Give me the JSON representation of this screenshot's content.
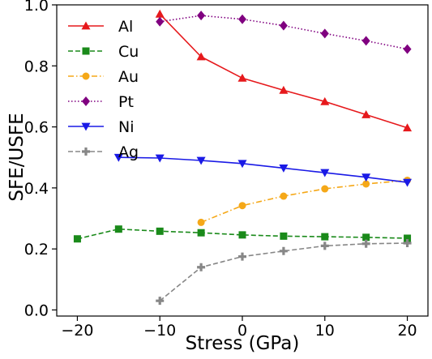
{
  "chart_data": {
    "type": "line",
    "title": "",
    "xlabel": "Stress (GPa)",
    "ylabel": "SFE/USFE",
    "xlim": [
      -22.5,
      22.5
    ],
    "ylim": [
      -0.02,
      1.0
    ],
    "xticks": [
      -20,
      -10,
      0,
      10,
      20
    ],
    "xtick_labels": [
      "−20",
      "−10",
      "0",
      "10",
      "20"
    ],
    "yticks": [
      0.0,
      0.2,
      0.4,
      0.6,
      0.8,
      1.0
    ],
    "ytick_labels": [
      "0.0",
      "0.2",
      "0.4",
      "0.6",
      "0.8",
      "1.0"
    ],
    "grid": false,
    "legend_position": "top-left",
    "series": [
      {
        "name": "Al",
        "color": "#e6191c",
        "dash": "solid",
        "marker": "triangle-up",
        "x": [
          -10,
          -5,
          0,
          5,
          10,
          15,
          20
        ],
        "y": [
          0.97,
          0.83,
          0.76,
          0.72,
          0.683,
          0.64,
          0.597
        ]
      },
      {
        "name": "Cu",
        "color": "#1a8a1a",
        "dash": "dashed",
        "marker": "square",
        "x": [
          -20,
          -15,
          -10,
          -5,
          0,
          5,
          10,
          15,
          20
        ],
        "y": [
          0.233,
          0.265,
          0.258,
          0.253,
          0.246,
          0.242,
          0.24,
          0.238,
          0.235
        ]
      },
      {
        "name": "Au",
        "color": "#f5a818",
        "dash": "dashdot",
        "marker": "circle",
        "x": [
          -5,
          0,
          5,
          10,
          15,
          20
        ],
        "y": [
          0.287,
          0.342,
          0.373,
          0.397,
          0.413,
          0.425
        ]
      },
      {
        "name": "Pt",
        "color": "#800080",
        "dash": "dotted",
        "marker": "diamond",
        "x": [
          -10,
          -5,
          0,
          5,
          10,
          15,
          20
        ],
        "y": [
          0.945,
          0.965,
          0.953,
          0.932,
          0.906,
          0.882,
          0.855
        ]
      },
      {
        "name": "Ni",
        "color": "#1a1ae6",
        "dash": "solid",
        "marker": "triangle-down",
        "x": [
          -15,
          -10,
          -5,
          0,
          5,
          10,
          15,
          20
        ],
        "y": [
          0.5,
          0.498,
          0.49,
          0.48,
          0.465,
          0.45,
          0.435,
          0.418
        ]
      },
      {
        "name": "Ag",
        "color": "#878787",
        "dash": "dashed",
        "marker": "plus",
        "x": [
          -10,
          -5,
          0,
          5,
          10,
          15,
          20
        ],
        "y": [
          0.03,
          0.14,
          0.175,
          0.193,
          0.21,
          0.217,
          0.219
        ]
      }
    ]
  }
}
